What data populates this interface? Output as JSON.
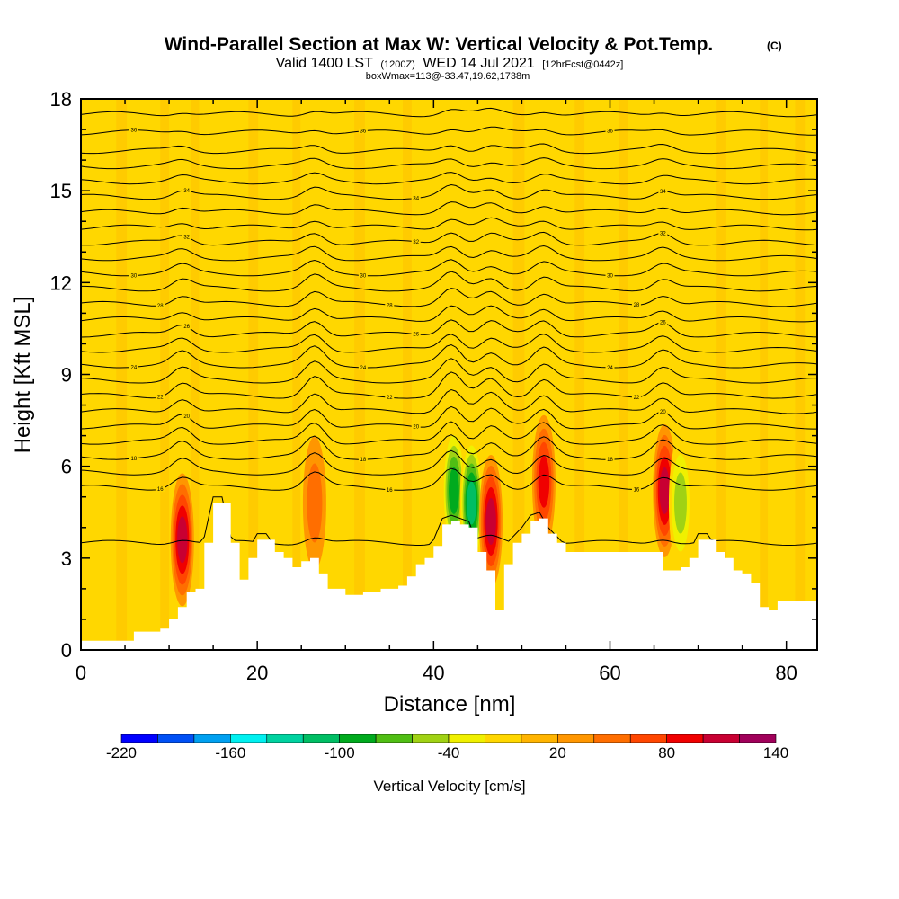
{
  "chart_data": {
    "type": "heatmap",
    "title": "Wind-Parallel Section at Max W: Vertical Velocity & Pot.Temp.",
    "title_mark": "(C)",
    "subtitle_main": "Valid 1400 LST",
    "subtitle_utc": "(1200Z)",
    "subtitle_date": "WED 14 Jul 2021",
    "subtitle_fcst": "[12hrFcst@0442z]",
    "subtitle_box": "boxWmax=113@-33.47,19.62,1738m",
    "xlabel": "Distance [nm]",
    "ylabel": "Height [Kft MSL]",
    "xlim": [
      0,
      83.5
    ],
    "ylim": [
      0,
      18
    ],
    "xticks": [
      0,
      20,
      40,
      60,
      80
    ],
    "yticks": [
      0,
      3,
      6,
      9,
      12,
      15,
      18
    ],
    "xtick_labels": [
      "0",
      "20",
      "40",
      "60",
      "80"
    ],
    "ytick_labels": [
      "0",
      "3",
      "6",
      "9",
      "12",
      "15",
      "18"
    ],
    "background_color": "#ffd700",
    "colorbar": {
      "label": "Vertical Velocity [cm/s]",
      "min": -220,
      "max": 140,
      "step": 20,
      "tick_values": [
        -220,
        -160,
        -100,
        -40,
        20,
        80,
        140
      ],
      "tick_labels": [
        "-220",
        "-160",
        "-100",
        "-40",
        "20",
        "80",
        "140"
      ],
      "colors": [
        "#0000ff",
        "#0050f5",
        "#00a0f0",
        "#00f0f0",
        "#00d2a0",
        "#00be64",
        "#00aa1e",
        "#50be14",
        "#a0d214",
        "#f0f000",
        "#ffd700",
        "#ffb400",
        "#ff9600",
        "#ff6e00",
        "#ff4600",
        "#f00000",
        "#c80032",
        "#a0005a"
      ]
    },
    "terrain": {
      "distance_nm": [
        0,
        5,
        6,
        9,
        10,
        11,
        12,
        13,
        14,
        15,
        16,
        17,
        18,
        19,
        20,
        21,
        22,
        23,
        24,
        25,
        26,
        27,
        28,
        30,
        32,
        34,
        36,
        37,
        38,
        39,
        40,
        41,
        42,
        43,
        44,
        45,
        46,
        47,
        48,
        49,
        50,
        51,
        52,
        53,
        54,
        55,
        56,
        57,
        58,
        59,
        60,
        61,
        62,
        63,
        64,
        65,
        66,
        67,
        68,
        69,
        70,
        71,
        72,
        73,
        74,
        75,
        76,
        77,
        78,
        79,
        80,
        81,
        82,
        83.5
      ],
      "height_kft": [
        0.3,
        0.3,
        0.6,
        0.7,
        1.0,
        1.4,
        1.9,
        2.0,
        3.5,
        4.8,
        4.8,
        3.5,
        2.3,
        3.0,
        3.6,
        3.6,
        3.2,
        3.0,
        2.7,
        2.9,
        3.0,
        2.5,
        2.0,
        1.8,
        1.9,
        2.0,
        2.1,
        2.4,
        2.8,
        3.0,
        3.4,
        4.1,
        4.2,
        4.1,
        4.0,
        3.2,
        2.6,
        1.3,
        2.8,
        3.5,
        3.8,
        4.2,
        4.3,
        3.8,
        3.5,
        3.2,
        3.2,
        3.2,
        3.2,
        3.2,
        3.2,
        3.2,
        3.2,
        3.2,
        3.2,
        3.2,
        2.6,
        2.6,
        2.7,
        3.0,
        3.6,
        3.6,
        3.2,
        3.0,
        2.6,
        2.5,
        2.2,
        1.4,
        1.3,
        1.6,
        1.6,
        1.6,
        1.6,
        1.6
      ]
    },
    "vertical_velocity_features": [
      {
        "x_nm": 11.5,
        "z_kft": 3.6,
        "w_cm_s": 100
      },
      {
        "x_nm": 26.5,
        "z_kft": 4.8,
        "w_cm_s": 40
      },
      {
        "x_nm": 42.3,
        "z_kft": 5.2,
        "w_cm_s": -110
      },
      {
        "x_nm": 44.3,
        "z_kft": 4.8,
        "w_cm_s": -130
      },
      {
        "x_nm": 46.5,
        "z_kft": 4.2,
        "w_cm_s": 113
      },
      {
        "x_nm": 52.5,
        "z_kft": 5.5,
        "w_cm_s": 90
      },
      {
        "x_nm": 66.2,
        "z_kft": 5.2,
        "w_cm_s": 110
      },
      {
        "x_nm": 68.0,
        "z_kft": 4.8,
        "w_cm_s": -60
      }
    ],
    "theta_contours": [
      {
        "base_kft": 3.5,
        "amp": 0.15,
        "label": ""
      },
      {
        "base_kft": 5.3,
        "amp": 0.35,
        "label": "16"
      },
      {
        "base_kft": 5.8,
        "amp": 0.4,
        "label": ""
      },
      {
        "base_kft": 6.3,
        "amp": 0.45,
        "label": "18"
      },
      {
        "base_kft": 6.8,
        "amp": 0.45,
        "label": ""
      },
      {
        "base_kft": 7.3,
        "amp": 0.45,
        "label": "20"
      },
      {
        "base_kft": 7.8,
        "amp": 0.45,
        "label": ""
      },
      {
        "base_kft": 8.3,
        "amp": 0.45,
        "label": "22"
      },
      {
        "base_kft": 8.8,
        "amp": 0.4,
        "label": ""
      },
      {
        "base_kft": 9.3,
        "amp": 0.4,
        "label": "24"
      },
      {
        "base_kft": 9.8,
        "amp": 0.35,
        "label": ""
      },
      {
        "base_kft": 10.3,
        "amp": 0.35,
        "label": "26"
      },
      {
        "base_kft": 10.8,
        "amp": 0.3,
        "label": ""
      },
      {
        "base_kft": 11.3,
        "amp": 0.3,
        "label": "28"
      },
      {
        "base_kft": 11.8,
        "amp": 0.3,
        "label": ""
      },
      {
        "base_kft": 12.3,
        "amp": 0.25,
        "label": "30"
      },
      {
        "base_kft": 12.8,
        "amp": 0.25,
        "label": ""
      },
      {
        "base_kft": 13.3,
        "amp": 0.25,
        "label": "32"
      },
      {
        "base_kft": 13.8,
        "amp": 0.2,
        "label": ""
      },
      {
        "base_kft": 14.3,
        "amp": 0.2,
        "label": ""
      },
      {
        "base_kft": 14.8,
        "amp": 0.2,
        "label": "34"
      },
      {
        "base_kft": 15.3,
        "amp": 0.15,
        "label": ""
      },
      {
        "base_kft": 15.8,
        "amp": 0.15,
        "label": ""
      },
      {
        "base_kft": 16.3,
        "amp": 0.15,
        "label": ""
      },
      {
        "base_kft": 16.9,
        "amp": 0.1,
        "label": "36"
      },
      {
        "base_kft": 17.5,
        "amp": 0.1,
        "label": ""
      }
    ]
  }
}
